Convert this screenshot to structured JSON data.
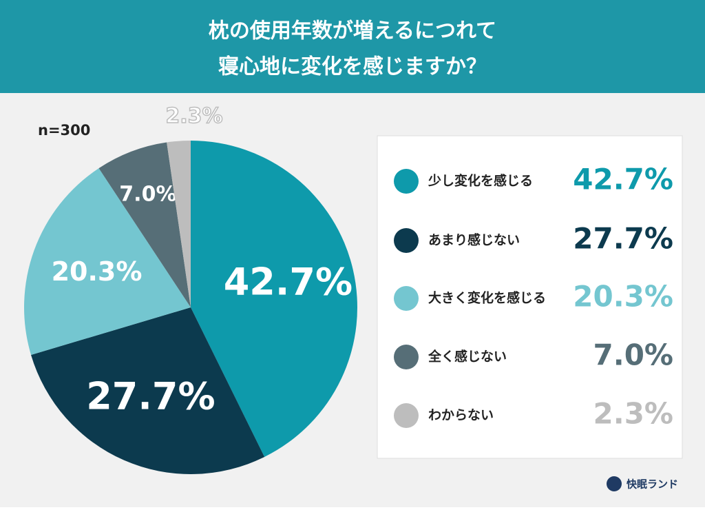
{
  "chart_data": {
    "type": "pie",
    "title": [
      "枕の使用年数が増えるにつれて",
      "寝心地に変化を感じますか？"
    ],
    "subtitle": "n=300",
    "categories": [
      "少し変化を感じる",
      "あまり感じない",
      "大きく変化を感じる",
      "全く感じない",
      "わからない"
    ],
    "values": [
      42.7,
      27.7,
      20.3,
      7.0,
      2.3
    ],
    "value_labels": [
      "42.7%",
      "27.7%",
      "20.3%",
      "7.0%",
      "2.3%"
    ],
    "colors": [
      "#0e9aab",
      "#0c3a4e",
      "#74c6d0",
      "#566e77",
      "#bdbdbd"
    ]
  },
  "brand": "快眠ランド"
}
